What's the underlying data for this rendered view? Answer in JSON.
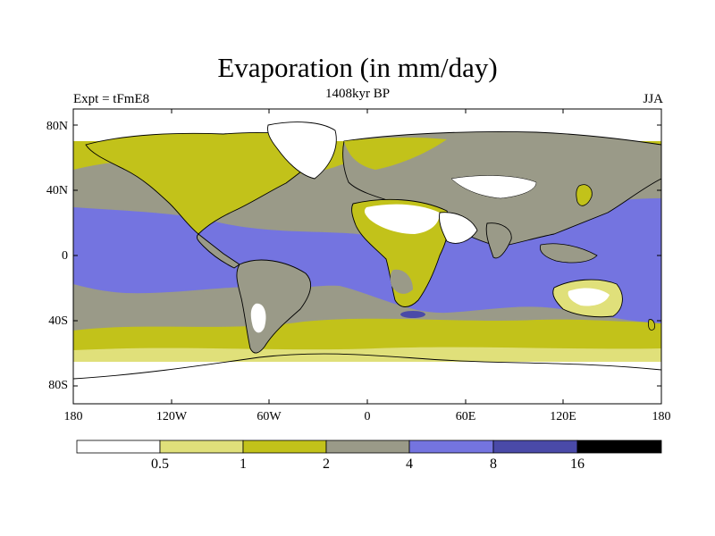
{
  "title": "Evaporation (in mm/day)",
  "subtitle": "1408kyr BP",
  "experiment_label": "Expt = tFmE8",
  "season_label": "JJA",
  "lat_ticks": [
    "80N",
    "40N",
    "0",
    "40S",
    "80S"
  ],
  "lon_ticks": [
    "180",
    "120W",
    "60W",
    "0",
    "60E",
    "120E",
    "180"
  ],
  "colorbar": {
    "labels": [
      "0.5",
      "1",
      "2",
      "4",
      "8",
      "16"
    ],
    "colors": [
      "#ffffff",
      "#e0e07a",
      "#c2c21a",
      "#9a9a88",
      "#7474e0",
      "#4a4aa8",
      "#000000"
    ]
  }
}
